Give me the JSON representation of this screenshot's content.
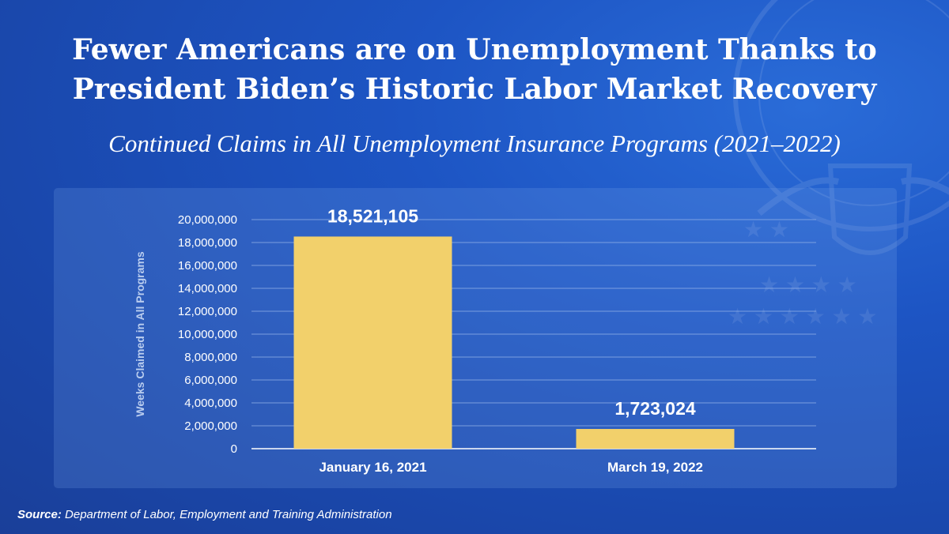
{
  "title": "Fewer Americans are on Unemployment Thanks to President Biden’s Historic Labor Market Recovery",
  "subtitle": "Continued Claims in All Unemployment Insurance Programs (2021–2022)",
  "source": {
    "label": "Source:",
    "text": "Department of Labor, Employment and Training Administration"
  },
  "colors": {
    "bar": "#f2d06b",
    "background": "#1d55c4",
    "gridline": "#8eaee6"
  },
  "chart_data": {
    "type": "bar",
    "categories": [
      "January 16, 2021",
      "March 19, 2022"
    ],
    "values": [
      18521105,
      1723024
    ],
    "data_labels": [
      "18,521,105",
      "1,723,024"
    ],
    "ylabel": "Weeks Claimed in All Programs",
    "ylim": [
      0,
      20000000
    ],
    "yticks": [
      "0",
      "2,000,000",
      "4,000,000",
      "6,000,000",
      "8,000,000",
      "10,000,000",
      "12,000,000",
      "14,000,000",
      "16,000,000",
      "18,000,000",
      "20,000,000"
    ],
    "grid": true,
    "legend": "none"
  }
}
